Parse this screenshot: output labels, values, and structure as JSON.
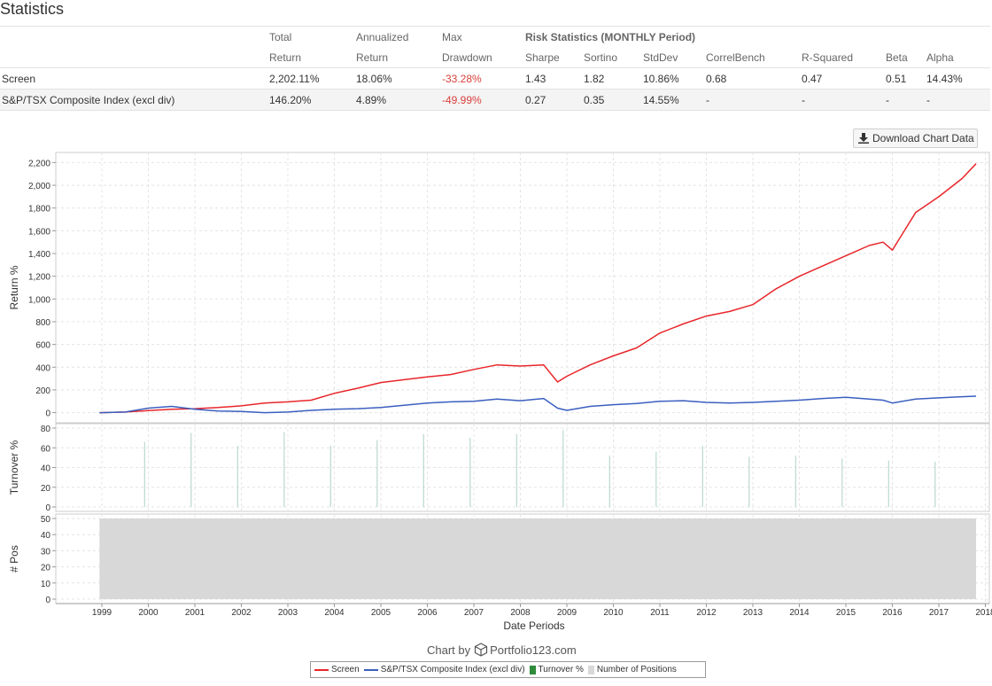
{
  "page_title": "Statistics",
  "stats": {
    "headers": {
      "total_1": "Total",
      "total_2": "Return",
      "annualized_1": "Annualized",
      "annualized_2": "Return",
      "max_1": "Max",
      "max_2": "Drawdown",
      "risk_title": "Risk Statistics (MONTHLY Period)",
      "sharpe": "Sharpe",
      "sortino": "Sortino",
      "stddev": "StdDev",
      "correlbench": "CorrelBench",
      "rsquared": "R-Squared",
      "beta": "Beta",
      "alpha": "Alpha"
    },
    "rows": [
      {
        "name": "Screen",
        "total": "2,202.11%",
        "annualized": "18.06%",
        "drawdown": "-33.28%",
        "sharpe": "1.43",
        "sortino": "1.82",
        "stddev": "10.86%",
        "correlbench": "0.68",
        "rsquared": "0.47",
        "beta": "0.51",
        "alpha": "14.43%"
      },
      {
        "name": "S&P/TSX Composite Index (excl div)",
        "total": "146.20%",
        "annualized": "4.89%",
        "drawdown": "-49.99%",
        "sharpe": "0.27",
        "sortino": "0.35",
        "stddev": "14.55%",
        "correlbench": "-",
        "rsquared": "-",
        "beta": "-",
        "alpha": "-"
      }
    ]
  },
  "download_button": {
    "label": "Download Chart Data",
    "icon": "download-icon"
  },
  "credit": {
    "prefix": "Chart by",
    "brand": "Portfolio123.com",
    "icon": "cube-icon"
  },
  "legend": {
    "screen": "Screen",
    "benchmark": "S&P/TSX Composite Index (excl div)",
    "turnover": "Turnover %",
    "positions": "Number of Positions"
  },
  "colors": {
    "screen": "#e8262a",
    "benchmark": "#3a5fbf",
    "turnover": "#2e8b3a",
    "positions": "#d8d8d8"
  },
  "chart_data": {
    "type": "line",
    "xlabel": "Date Periods",
    "x_ticks": [
      "1999",
      "2000",
      "2001",
      "2002",
      "2003",
      "2004",
      "2005",
      "2006",
      "2007",
      "2008",
      "2009",
      "2010",
      "2011",
      "2012",
      "2013",
      "2014",
      "2015",
      "2016",
      "2017",
      "2018"
    ],
    "grid": true,
    "return_panel": {
      "ylabel": "Return %",
      "ylim": [
        -50,
        2250
      ],
      "yticks": [
        0,
        200,
        400,
        600,
        800,
        1000,
        1200,
        1400,
        1600,
        1800,
        2000,
        2200
      ],
      "x": [
        1998.95,
        1999.5,
        2000.0,
        2000.5,
        2001.0,
        2001.5,
        2002.0,
        2002.5,
        2003.0,
        2003.5,
        2004.0,
        2004.5,
        2005.0,
        2005.5,
        2006.0,
        2006.5,
        2007.0,
        2007.5,
        2008.0,
        2008.5,
        2008.8,
        2009.0,
        2009.5,
        2010.0,
        2010.5,
        2011.0,
        2011.5,
        2012.0,
        2012.5,
        2013.0,
        2013.5,
        2014.0,
        2014.5,
        2015.0,
        2015.5,
        2015.8,
        2016.0,
        2016.5,
        2017.0,
        2017.5,
        2017.8
      ],
      "series": [
        {
          "name": "Screen",
          "values": [
            0,
            5,
            18,
            30,
            35,
            45,
            60,
            85,
            95,
            110,
            170,
            215,
            265,
            290,
            315,
            335,
            380,
            420,
            410,
            420,
            270,
            320,
            420,
            500,
            570,
            700,
            780,
            850,
            890,
            950,
            1090,
            1200,
            1290,
            1380,
            1470,
            1500,
            1430,
            1760,
            1900,
            2060,
            2190
          ]
        },
        {
          "name": "S&P/TSX Composite Index (excl div)",
          "values": [
            0,
            5,
            40,
            55,
            30,
            15,
            10,
            0,
            5,
            20,
            30,
            35,
            45,
            65,
            85,
            95,
            100,
            120,
            105,
            125,
            40,
            20,
            55,
            70,
            80,
            100,
            105,
            90,
            85,
            90,
            100,
            110,
            125,
            135,
            120,
            110,
            85,
            120,
            130,
            140,
            145
          ]
        }
      ]
    },
    "turnover_panel": {
      "ylabel": "Turnover %",
      "ylim": [
        0,
        80
      ],
      "yticks": [
        0,
        20,
        40,
        60,
        80
      ],
      "name": "Turnover %",
      "x": [
        1999.92,
        2000.92,
        2001.92,
        2002.92,
        2003.92,
        2004.92,
        2005.92,
        2006.92,
        2007.92,
        2008.92,
        2009.92,
        2010.92,
        2011.92,
        2012.92,
        2013.92,
        2014.92,
        2015.92,
        2016.92
      ],
      "values": [
        66,
        75,
        62,
        76,
        62,
        68,
        74,
        70,
        74,
        78,
        52,
        56,
        62,
        51,
        52,
        49,
        47,
        46
      ]
    },
    "positions_panel": {
      "ylabel": "# Pos",
      "ylim": [
        0,
        50
      ],
      "yticks": [
        0,
        10,
        20,
        30,
        40,
        50
      ],
      "name": "Number of Positions",
      "x": [
        1998.95,
        2017.8
      ],
      "values": [
        50,
        50
      ]
    }
  }
}
